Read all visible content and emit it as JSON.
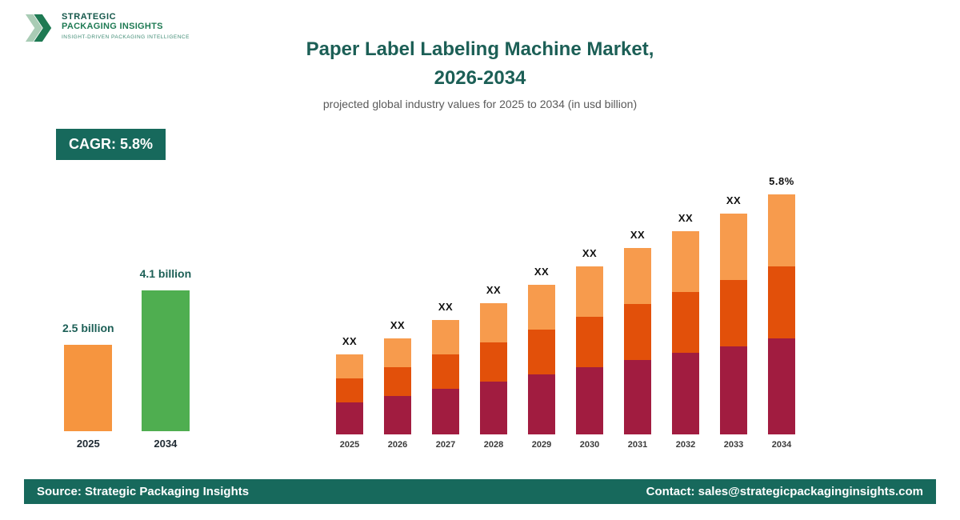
{
  "logo": {
    "line1": "STRATEGIC",
    "line2": "PACKAGING INSIGHTS",
    "tagline": "INSIGHT-DRIVEN PACKAGING INTELLIGENCE"
  },
  "header": {
    "title_line1": "Paper Label Labeling Machine Market,",
    "title_line2": "2026-2034",
    "subtitle": "projected global industry values for 2025 to 2034 (in usd billion)"
  },
  "cagr_badge": {
    "label": "CAGR: 5.8%"
  },
  "footer": {
    "source": "Source: Strategic Packaging Insights",
    "contact": "Contact: sales@strategicpackaginginsights.com"
  },
  "colors": {
    "brand_green": "#17695c",
    "title_teal": "#1c5f56",
    "bar_orange": "#f6953f",
    "bar_green": "#4fae50",
    "seg_maroon": "#a11c40",
    "seg_orange_red": "#e2500a",
    "seg_light_orange": "#f79b4d"
  },
  "chart_data": [
    {
      "type": "bar",
      "title": "Market size 2025 vs 2034",
      "categories": [
        "2025",
        "2034"
      ],
      "values": [
        2.5,
        4.1
      ],
      "value_labels": [
        "2.5 billion",
        "4.1 billion"
      ],
      "bar_colors": [
        "#f6953f",
        "#4fae50"
      ],
      "ylabel": "USD billion",
      "ylim": [
        0,
        4.5
      ],
      "grid": false,
      "legend": "none"
    },
    {
      "type": "bar",
      "stacked": true,
      "title": "Projected global industry values 2025 to 2034",
      "categories": [
        "2025",
        "2026",
        "2027",
        "2028",
        "2029",
        "2030",
        "2031",
        "2032",
        "2033",
        "2034"
      ],
      "bar_labels": [
        "XX",
        "XX",
        "XX",
        "XX",
        "XX",
        "XX",
        "XX",
        "XX",
        "XX",
        "5.8%"
      ],
      "totals_estimated_usd_billion": [
        2.5,
        2.64,
        2.8,
        2.96,
        3.13,
        3.31,
        3.5,
        3.71,
        3.92,
        4.1
      ],
      "relative_heights": [
        1.0,
        1.2,
        1.42,
        1.64,
        1.88,
        2.1,
        2.32,
        2.54,
        2.76,
        2.99
      ],
      "segments_top_to_bottom": [
        "light-orange",
        "orange-red",
        "maroon"
      ],
      "segment_colors_top_to_bottom": [
        "#f79b4d",
        "#e2500a",
        "#a11c40"
      ],
      "segment_fractions_top_to_bottom": [
        0.3,
        0.3,
        0.4
      ],
      "ylabel": "USD billion",
      "grid": false,
      "legend": "none"
    }
  ]
}
